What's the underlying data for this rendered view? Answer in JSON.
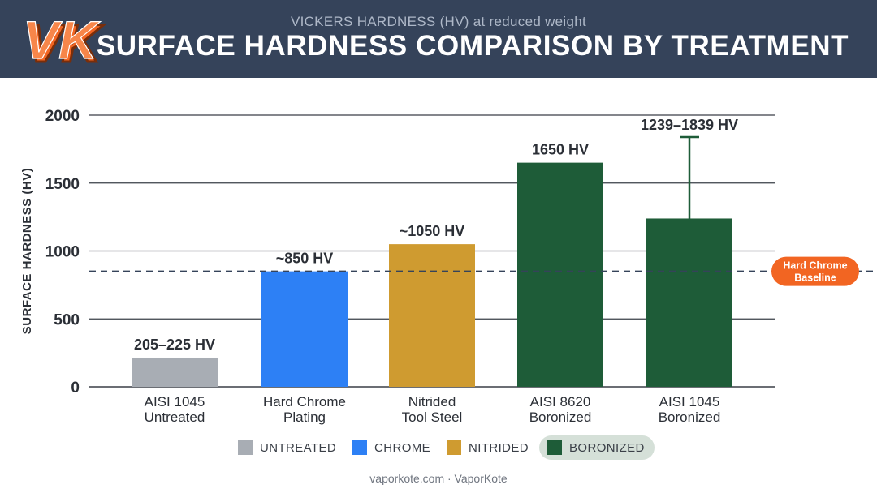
{
  "header": {
    "logo_text": "VK",
    "subtitle": "VICKERS HARDNESS (HV) at reduced weight",
    "title": "SURFACE HARDNESS COMPARISON BY TREATMENT"
  },
  "chart_data": {
    "type": "bar",
    "title": "SURFACE HARDNESS COMPARISON BY TREATMENT",
    "subtitle": "VICKERS HARDNESS (HV) at reduced weight",
    "xlabel": "",
    "ylabel": "SURFACE HARDNESS (HV)",
    "ylim": [
      0,
      2000
    ],
    "yticks": [
      0,
      500,
      1000,
      1500,
      2000
    ],
    "grid": true,
    "legend_position": "bottom",
    "categories": [
      [
        "AISI 1045",
        "Untreated"
      ],
      [
        "Hard Chrome",
        "Plating"
      ],
      [
        "Nitrided",
        "Tool Steel"
      ],
      [
        "AISI 8620",
        "Boronized"
      ],
      [
        "AISI 1045",
        "Boronized"
      ]
    ],
    "values": [
      215,
      850,
      1050,
      1650,
      1239
    ],
    "range_max": [
      null,
      null,
      null,
      null,
      1839
    ],
    "value_labels": [
      "205–225 HV",
      "~850 HV",
      "~1050 HV",
      "1650 HV",
      "1239–1839 HV"
    ],
    "groups": [
      "UNTREATED",
      "CHROME",
      "NITRIDED",
      "BORONIZED",
      "BORONIZED"
    ],
    "colors": {
      "UNTREATED": "#a8adb4",
      "CHROME": "#2d80f5",
      "NITRIDED": "#cf9b30",
      "BORONIZED": "#1e5c38"
    },
    "reference_line": {
      "value": 850,
      "label_lines": [
        "Hard Chrome",
        "Baseline"
      ],
      "color": "#f26522"
    }
  },
  "legend": {
    "items": [
      {
        "label": "UNTREATED",
        "color": "#a8adb4",
        "highlight": false
      },
      {
        "label": "CHROME",
        "color": "#2d80f5",
        "highlight": false
      },
      {
        "label": "NITRIDED",
        "color": "#cf9b30",
        "highlight": false
      },
      {
        "label": "BORONIZED",
        "color": "#1e5c38",
        "highlight": true
      }
    ]
  },
  "footer": {
    "text": "vaporkote.com · VaporKote"
  }
}
